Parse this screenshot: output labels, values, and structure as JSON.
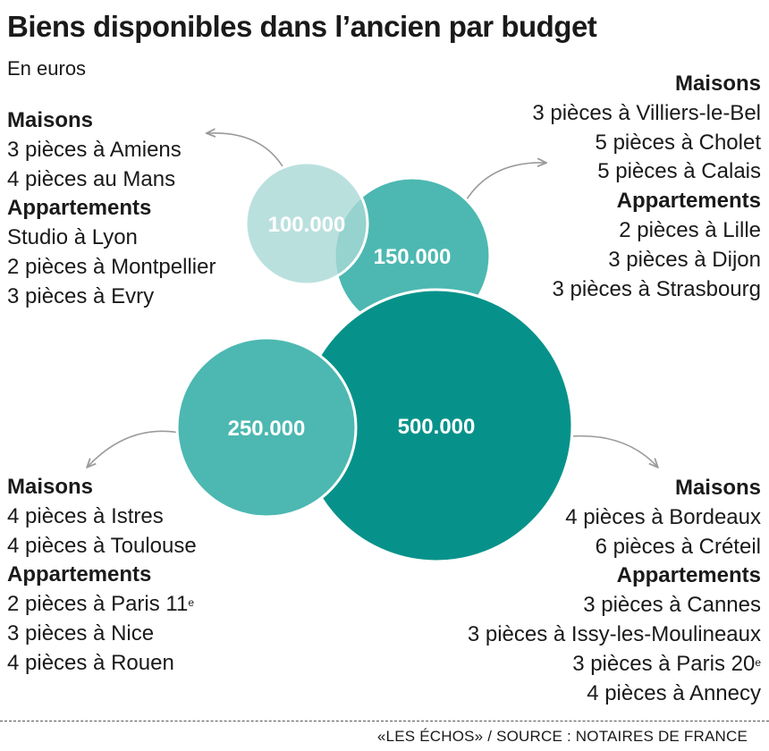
{
  "title": "Biens disponibles dans l’ancien par budget",
  "subtitle": "En euros",
  "chart_data": {
    "type": "bubble",
    "title": "Biens disponibles dans l’ancien par budget",
    "unit": "En euros",
    "bubbles": [
      {
        "label": "100.000",
        "value": 100000,
        "color": "#a9d8d6",
        "groups": [
          {
            "head": "Maisons",
            "items": [
              [
                "3 pièces à Amiens"
              ],
              [
                "4 pièces au Mans"
              ]
            ]
          },
          {
            "head": "Appartements",
            "items": [
              [
                "Studio à Lyon"
              ],
              [
                "2 pièces à Montpellier"
              ],
              [
                "3 pièces à Evry"
              ]
            ]
          }
        ]
      },
      {
        "label": "150.000",
        "value": 150000,
        "color": "#4cb8b1",
        "groups": [
          {
            "head": "Maisons",
            "items": [
              [
                "3 pièces à Villiers-le-Bel"
              ],
              [
                "5 pièces à Cholet"
              ],
              [
                "5 pièces à Calais"
              ]
            ]
          },
          {
            "head": "Appartements",
            "items": [
              [
                "2 pièces à Lille"
              ],
              [
                "3 pièces à Dijon"
              ],
              [
                "3 pièces à Strasbourg"
              ]
            ]
          }
        ]
      },
      {
        "label": "250.000",
        "value": 250000,
        "color": "#4cb8b1",
        "groups": [
          {
            "head": "Maisons",
            "items": [
              [
                "4 pièces à Istres"
              ],
              [
                "4 pièces à Toulouse"
              ]
            ]
          },
          {
            "head": "Appartements",
            "items": [
              [
                "2 pièces à Paris 11",
                "e"
              ],
              [
                "3 pièces à Nice"
              ],
              [
                "4 pièces à Rouen"
              ]
            ]
          }
        ]
      },
      {
        "label": "500.000",
        "value": 500000,
        "color": "#06928a",
        "groups": [
          {
            "head": "Maisons",
            "items": [
              [
                "4 pièces à Bordeaux"
              ],
              [
                "6 pièces à Créteil"
              ]
            ]
          },
          {
            "head": "Appartements",
            "items": [
              [
                "3 pièces à Cannes"
              ],
              [
                "3 pièces à Issy-les-Moulineaux"
              ],
              [
                "3 pièces à Paris 20",
                "e"
              ],
              [
                "4 pièces à Annecy"
              ]
            ]
          }
        ]
      }
    ]
  },
  "source": "«LES ÉCHOS» / SOURCE : NOTAIRES DE FRANCE"
}
